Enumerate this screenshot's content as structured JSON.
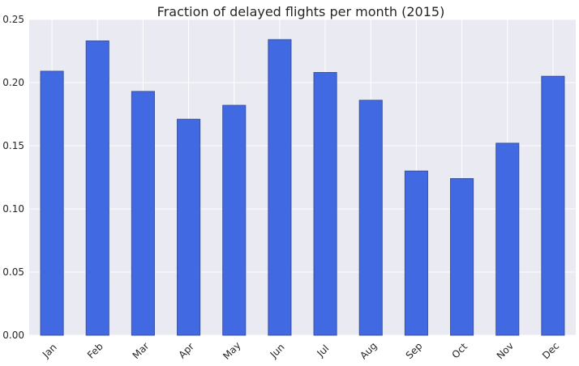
{
  "chart_data": {
    "type": "bar",
    "title": "Fraction of delayed flights per month (2015)",
    "xlabel": "",
    "ylabel": "",
    "categories": [
      "Jan",
      "Feb",
      "Mar",
      "Apr",
      "May",
      "Jun",
      "Jul",
      "Aug",
      "Sep",
      "Oct",
      "Nov",
      "Dec"
    ],
    "values": [
      0.209,
      0.233,
      0.193,
      0.171,
      0.182,
      0.234,
      0.208,
      0.186,
      0.13,
      0.124,
      0.152,
      0.205
    ],
    "ylim": [
      0,
      0.25
    ],
    "yticks": [
      "0.00",
      "0.05",
      "0.10",
      "0.15",
      "0.20",
      "0.25"
    ],
    "grid": true,
    "bar_color": "#4169e1",
    "background": "#eaeaf2"
  }
}
